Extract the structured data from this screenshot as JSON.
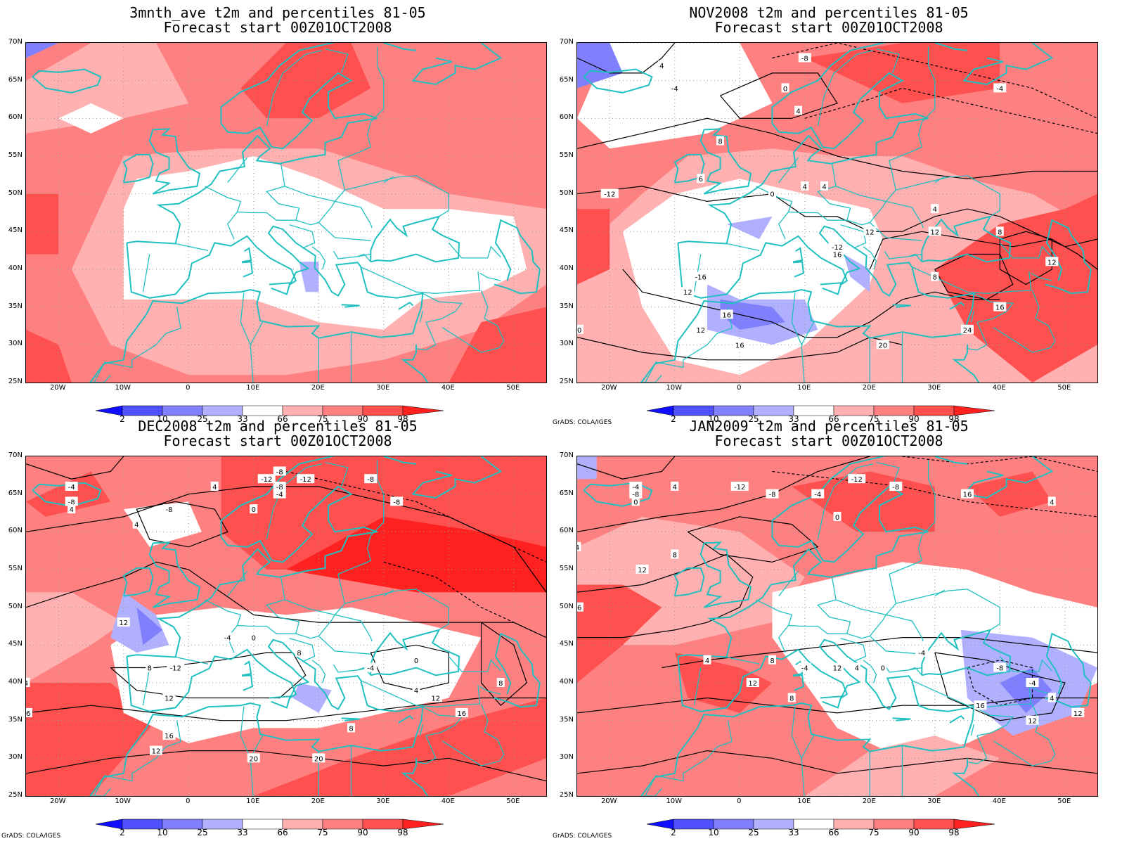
{
  "panels": [
    {
      "title1": "3mnth_ave t2m and percentiles 81-05",
      "title2": "Forecast start 00Z01OCT2008",
      "credit": ""
    },
    {
      "title1": "NOV2008 t2m and percentiles 81-05",
      "title2": "Forecast start 00Z01OCT2008",
      "credit": "GrADS: COLA/IGES"
    },
    {
      "title1": "DEC2008 t2m and percentiles 81-05",
      "title2": "Forecast start 00Z01OCT2008",
      "credit": "GrADS: COLA/IGES"
    },
    {
      "title1": "JAN2009 t2m and percentiles 81-05",
      "title2": "Forecast start 00Z01OCT2008",
      "credit": "GrADS: COLA/IGES"
    }
  ],
  "axes": {
    "lat_labels": [
      "70N",
      "65N",
      "60N",
      "55N",
      "50N",
      "45N",
      "40N",
      "35N",
      "30N",
      "25N"
    ],
    "lon_labels": [
      "20W",
      "10W",
      "0",
      "10E",
      "20E",
      "30E",
      "40E",
      "50E"
    ]
  },
  "colorbar": {
    "ticks": [
      "2",
      "10",
      "25",
      "33",
      "66",
      "75",
      "90",
      "98"
    ],
    "colors": [
      "#1010ff",
      "#5050ff",
      "#8080ff",
      "#b0b0ff",
      "#ffffff",
      "#ffb0b0",
      "#ff8080",
      "#ff5050",
      "#ff2020"
    ]
  },
  "contour_labels": {
    "nov": [
      "4",
      "-8",
      "-4",
      "0",
      "4",
      "-4",
      "8",
      "6",
      "-12",
      "4",
      "0",
      "4",
      "4",
      "12",
      "12",
      "8",
      "16",
      "-16",
      "12",
      "20",
      "16",
      "12",
      "-12",
      "16",
      "20",
      "24",
      "8",
      "12",
      "16"
    ],
    "dec": [
      "-4",
      "-8",
      "4",
      "4",
      "-12",
      "-8",
      "-8",
      "-4",
      "-12",
      "-8",
      "-8",
      "0",
      "-8",
      "4",
      "12",
      "-4",
      "0",
      "8",
      "-12",
      "8",
      "4",
      "-4",
      "0",
      "4",
      "12",
      "16",
      "8",
      "12",
      "16",
      "16",
      "12",
      "20",
      "20",
      "8"
    ],
    "jan": [
      "-4",
      "-8",
      "0",
      "4",
      "4",
      "-12",
      "-8",
      "-4",
      "0",
      "-12",
      "-8",
      "16",
      "4",
      "8",
      "12",
      "16",
      "4",
      "8",
      "12",
      "12",
      "8",
      "-4",
      "4",
      "0",
      "-4",
      "-8",
      "-4",
      "4",
      "12",
      "16",
      "12"
    ]
  }
}
